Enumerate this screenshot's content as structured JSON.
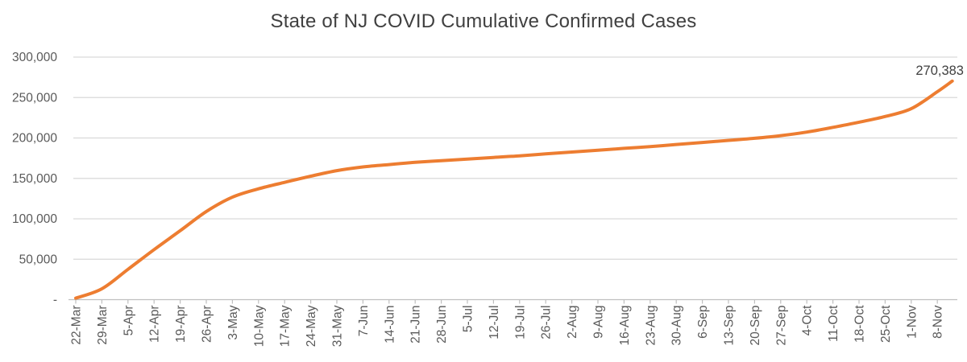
{
  "chart_data": {
    "type": "line",
    "title": "State of NJ COVID Cumulative Confirmed Cases",
    "xlabel": "",
    "ylabel": "",
    "ylim": [
      0,
      300000
    ],
    "grid": "horizontal-only",
    "legend_position": "none",
    "x_tick_interval_days": 7,
    "categories": [
      "22-Mar",
      "29-Mar",
      "5-Apr",
      "12-Apr",
      "19-Apr",
      "26-Apr",
      "3-May",
      "10-May",
      "17-May",
      "24-May",
      "31-May",
      "7-Jun",
      "14-Jun",
      "21-Jun",
      "28-Jun",
      "5-Jul",
      "12-Jul",
      "19-Jul",
      "26-Jul",
      "2-Aug",
      "9-Aug",
      "16-Aug",
      "23-Aug",
      "30-Aug",
      "6-Sep",
      "13-Sep",
      "20-Sep",
      "27-Sep",
      "4-Oct",
      "11-Oct",
      "18-Oct",
      "25-Oct",
      "1-Nov",
      "8-Nov"
    ],
    "y_ticks": [
      {
        "value": 0,
        "label": "-"
      },
      {
        "value": 50000,
        "label": "50,000"
      },
      {
        "value": 100000,
        "label": "100,000"
      },
      {
        "value": 150000,
        "label": "150,000"
      },
      {
        "value": 200000,
        "label": "200,000"
      },
      {
        "value": 250000,
        "label": "250,000"
      },
      {
        "value": 300000,
        "label": "300,000"
      }
    ],
    "series": [
      {
        "name": "NJ COVID cumulative confirmed cases",
        "color": "#ED7D31",
        "values_at_ticks": [
          1914,
          13386,
          37505,
          61850,
          85301,
          109038,
          126744,
          137085,
          145089,
          152719,
          159608,
          164164,
          167103,
          169892,
          171928,
          173878,
          175915,
          177887,
          180295,
          182614,
          184773,
          187164,
          189290,
          191960,
          194390,
          196968,
          199606,
          202850,
          207229,
          213087,
          219535,
          226576,
          236188,
          257205
        ],
        "final_point": {
          "days_after_last_tick": 4,
          "value": 270383,
          "label": "270,383"
        }
      }
    ],
    "styles": {
      "title_color": "#404040",
      "axis_label_color": "#595959",
      "gridline_color": "#D9D9D9",
      "axis_line_color": "#BFBFBF",
      "data_label_color": "#404040"
    }
  }
}
